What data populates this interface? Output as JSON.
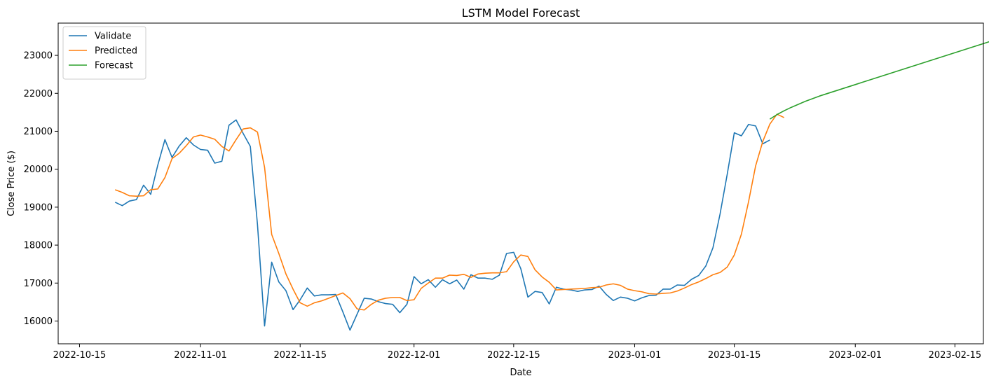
{
  "chart_data": {
    "type": "line",
    "title": "LSTM Model Forecast",
    "xlabel": "Date",
    "ylabel": "Close Price ($)",
    "xlim": [
      "2022-10-12",
      "2023-02-19"
    ],
    "ylim": [
      15400,
      23850
    ],
    "x_ticks": [
      "2022-10-15",
      "2022-11-01",
      "2022-11-15",
      "2022-12-01",
      "2022-12-15",
      "2023-01-01",
      "2023-01-15",
      "2023-02-01",
      "2023-02-15"
    ],
    "y_ticks": [
      16000,
      17000,
      18000,
      19000,
      20000,
      21000,
      22000,
      23000
    ],
    "grid": false,
    "legend": "top-left",
    "colors": {
      "Validate": "#1f77b4",
      "Predicted": "#ff7f0e",
      "Forecast": "#2ca02c"
    },
    "series": [
      {
        "name": "Validate",
        "start": "2022-10-20",
        "step_days": 1,
        "values": [
          19130,
          19040,
          19160,
          19200,
          19580,
          19340,
          20110,
          20780,
          20310,
          20610,
          20830,
          20640,
          20520,
          20500,
          20160,
          20210,
          21160,
          21300,
          20940,
          20600,
          18550,
          15870,
          17550,
          17030,
          16800,
          16300,
          16560,
          16870,
          16660,
          16690,
          16690,
          16700,
          16240,
          15760,
          16180,
          16600,
          16580,
          16510,
          16460,
          16440,
          16220,
          16440,
          17170,
          16980,
          17090,
          16890,
          17090,
          16980,
          17080,
          16840,
          17220,
          17130,
          17130,
          17100,
          17210,
          17780,
          17810,
          17380,
          16630,
          16780,
          16750,
          16450,
          16890,
          16840,
          16820,
          16780,
          16820,
          16830,
          16920,
          16700,
          16540,
          16630,
          16600,
          16530,
          16610,
          16670,
          16680,
          16840,
          16840,
          16950,
          16940,
          17100,
          17200,
          17450,
          17930,
          18820,
          19860,
          20960,
          20880,
          21180,
          21140,
          20670,
          20770
        ]
      },
      {
        "name": "Predicted",
        "start": "2022-10-20",
        "step_days": 1,
        "values": [
          19460,
          19390,
          19300,
          19290,
          19300,
          19460,
          19480,
          19780,
          20280,
          20420,
          20620,
          20850,
          20900,
          20850,
          20790,
          20600,
          20480,
          20780,
          21060,
          21090,
          20980,
          20050,
          18280,
          17780,
          17240,
          16840,
          16480,
          16390,
          16480,
          16530,
          16600,
          16670,
          16740,
          16590,
          16320,
          16290,
          16440,
          16550,
          16600,
          16620,
          16620,
          16540,
          16560,
          16860,
          17000,
          17130,
          17130,
          17210,
          17200,
          17230,
          17150,
          17240,
          17260,
          17270,
          17270,
          17300,
          17560,
          17740,
          17700,
          17350,
          17160,
          17020,
          16820,
          16830,
          16840,
          16850,
          16860,
          16880,
          16890,
          16950,
          16980,
          16940,
          16840,
          16800,
          16770,
          16720,
          16710,
          16730,
          16740,
          16790,
          16870,
          16960,
          17030,
          17120,
          17220,
          17280,
          17420,
          17740,
          18290,
          19140,
          20090,
          20730,
          21190,
          21450,
          21360
        ]
      },
      {
        "name": "Forecast",
        "start": "2023-01-20",
        "step_days": 1,
        "values": [
          21320,
          21440,
          21540,
          21630,
          21710,
          21790,
          21860,
          21930,
          21990,
          22050,
          22110,
          22170,
          22230,
          22290,
          22350,
          22410,
          22470,
          22530,
          22590,
          22650,
          22710,
          22770,
          22830,
          22890,
          22950,
          23010,
          23070,
          23130,
          23190,
          23250,
          23310,
          23370,
          23430
        ]
      }
    ]
  }
}
